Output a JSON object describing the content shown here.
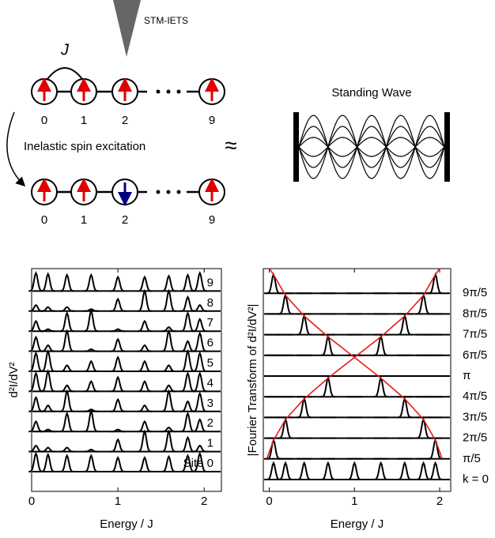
{
  "diagram": {
    "coupling": "J",
    "tip": "STM-IETS",
    "excitation": "Inelastic spin excitation",
    "approx": "≈",
    "standing_wave": "Standing Wave",
    "sites_before": [
      "0",
      "1",
      "2",
      "9"
    ],
    "sites_after": [
      "0",
      "1",
      "2",
      "9"
    ]
  },
  "chart_data": [
    {
      "type": "spectra",
      "xlabel": "Energy / J",
      "ylabel": "d²I/dV²",
      "x": [
        0.05,
        0.19,
        0.41,
        0.69,
        1.0,
        1.31,
        1.59,
        1.81,
        1.95
      ],
      "xlim": [
        0,
        2.2
      ],
      "xticks": [
        0,
        1,
        2
      ],
      "series": [
        {
          "name": "Site 0",
          "color": "#000000",
          "values": [
            0.9,
            0.85,
            0.8,
            0.8,
            0.7,
            0.7,
            0.75,
            0.8,
            0.9
          ]
        },
        {
          "name": "1",
          "color": "#000000",
          "values": [
            0.3,
            0.2,
            0.2,
            0.1,
            0.6,
            1.0,
            1.0,
            0.7,
            0.3
          ]
        },
        {
          "name": "2",
          "color": "#000000",
          "values": [
            0.5,
            0.1,
            0.9,
            1.0,
            0.1,
            0.5,
            0.2,
            0.9,
            0.6
          ]
        },
        {
          "name": "3",
          "color": "#000000",
          "values": [
            0.7,
            0.3,
            1.0,
            0.1,
            0.6,
            0.3,
            1.0,
            0.5,
            0.9
          ]
        },
        {
          "name": "4",
          "color": "#000000",
          "values": [
            0.9,
            1.0,
            0.3,
            0.5,
            0.7,
            0.5,
            0.3,
            0.9,
            0.9
          ]
        },
        {
          "name": "5",
          "color": "#000000",
          "values": [
            0.9,
            1.0,
            0.3,
            0.5,
            0.7,
            0.5,
            0.3,
            1.0,
            0.9
          ]
        },
        {
          "name": "6",
          "color": "#000000",
          "values": [
            0.7,
            0.3,
            1.0,
            0.1,
            0.6,
            0.3,
            1.0,
            0.5,
            0.9
          ]
        },
        {
          "name": "7",
          "color": "#000000",
          "values": [
            0.5,
            0.1,
            0.9,
            1.0,
            0.1,
            0.5,
            0.2,
            0.9,
            0.6
          ]
        },
        {
          "name": "8",
          "color": "#000000",
          "values": [
            0.3,
            0.2,
            0.2,
            0.1,
            0.6,
            1.0,
            1.0,
            0.7,
            0.3
          ]
        },
        {
          "name": "9",
          "color": "#000000",
          "values": [
            0.9,
            0.85,
            0.8,
            0.8,
            0.7,
            0.7,
            0.75,
            0.8,
            0.9
          ]
        }
      ]
    },
    {
      "type": "spectra",
      "xlabel": "Energy / J",
      "ylabel": "|Fourier Transform of d²I/dV²|",
      "x": [
        0.05,
        0.19,
        0.41,
        0.69,
        1.0,
        1.31,
        1.59,
        1.81,
        1.95
      ],
      "xlim": [
        -0.07,
        2.13
      ],
      "xticks": [
        0,
        1,
        2
      ],
      "series": [
        {
          "name": "k = 0",
          "color": "#000000",
          "values": [
            0.8,
            0.8,
            0.8,
            0.8,
            0.8,
            0.8,
            0.8,
            0.8,
            0.8
          ]
        },
        {
          "name": "π/5",
          "color": "#000000",
          "values": [
            0.9,
            0,
            0,
            0,
            0,
            0,
            0,
            0,
            0.9
          ]
        },
        {
          "name": "2π/5",
          "color": "#000000",
          "values": [
            0,
            0.9,
            0,
            0,
            0,
            0,
            0,
            0.9,
            0
          ]
        },
        {
          "name": "3π/5",
          "color": "#000000",
          "values": [
            0,
            0,
            0.9,
            0,
            0,
            0,
            0.9,
            0,
            0
          ]
        },
        {
          "name": "4π/5",
          "color": "#000000",
          "values": [
            0,
            0,
            0,
            0.9,
            0,
            0.9,
            0,
            0,
            0
          ]
        },
        {
          "name": "π",
          "color": "#000000",
          "values": [
            0,
            0,
            0,
            0,
            0,
            0,
            0,
            0,
            0
          ]
        },
        {
          "name": "6π/5",
          "color": "#000000",
          "values": [
            0,
            0,
            0,
            0.9,
            0,
            0.9,
            0,
            0,
            0
          ]
        },
        {
          "name": "7π/5",
          "color": "#000000",
          "values": [
            0,
            0,
            0.9,
            0,
            0,
            0,
            0.9,
            0,
            0
          ]
        },
        {
          "name": "8π/5",
          "color": "#000000",
          "values": [
            0,
            0.9,
            0,
            0,
            0,
            0,
            0,
            0.9,
            0
          ]
        },
        {
          "name": "9π/5",
          "color": "#000000",
          "values": [
            0.9,
            0,
            0,
            0,
            0,
            0,
            0,
            0,
            0.9
          ]
        }
      ],
      "curves": [
        {
          "color": "#e41a1c",
          "x": [
            0.0,
            0.05,
            0.19,
            0.41,
            0.69,
            1.0,
            1.31,
            1.59,
            1.81,
            1.95,
            2.03
          ],
          "y": [
            10.2,
            9.9,
            8.9,
            7.9,
            6.9,
            5.9,
            4.9,
            3.9,
            2.9,
            1.9,
            1.0
          ]
        },
        {
          "color": "#e41a1c",
          "x": [
            2.0,
            1.95,
            1.81,
            1.59,
            1.31,
            1.0,
            0.69,
            0.41,
            0.19,
            0.05,
            -0.03
          ],
          "y": [
            10.2,
            9.9,
            8.9,
            7.9,
            6.9,
            5.9,
            4.9,
            3.9,
            2.9,
            1.9,
            1.0
          ]
        }
      ]
    }
  ]
}
